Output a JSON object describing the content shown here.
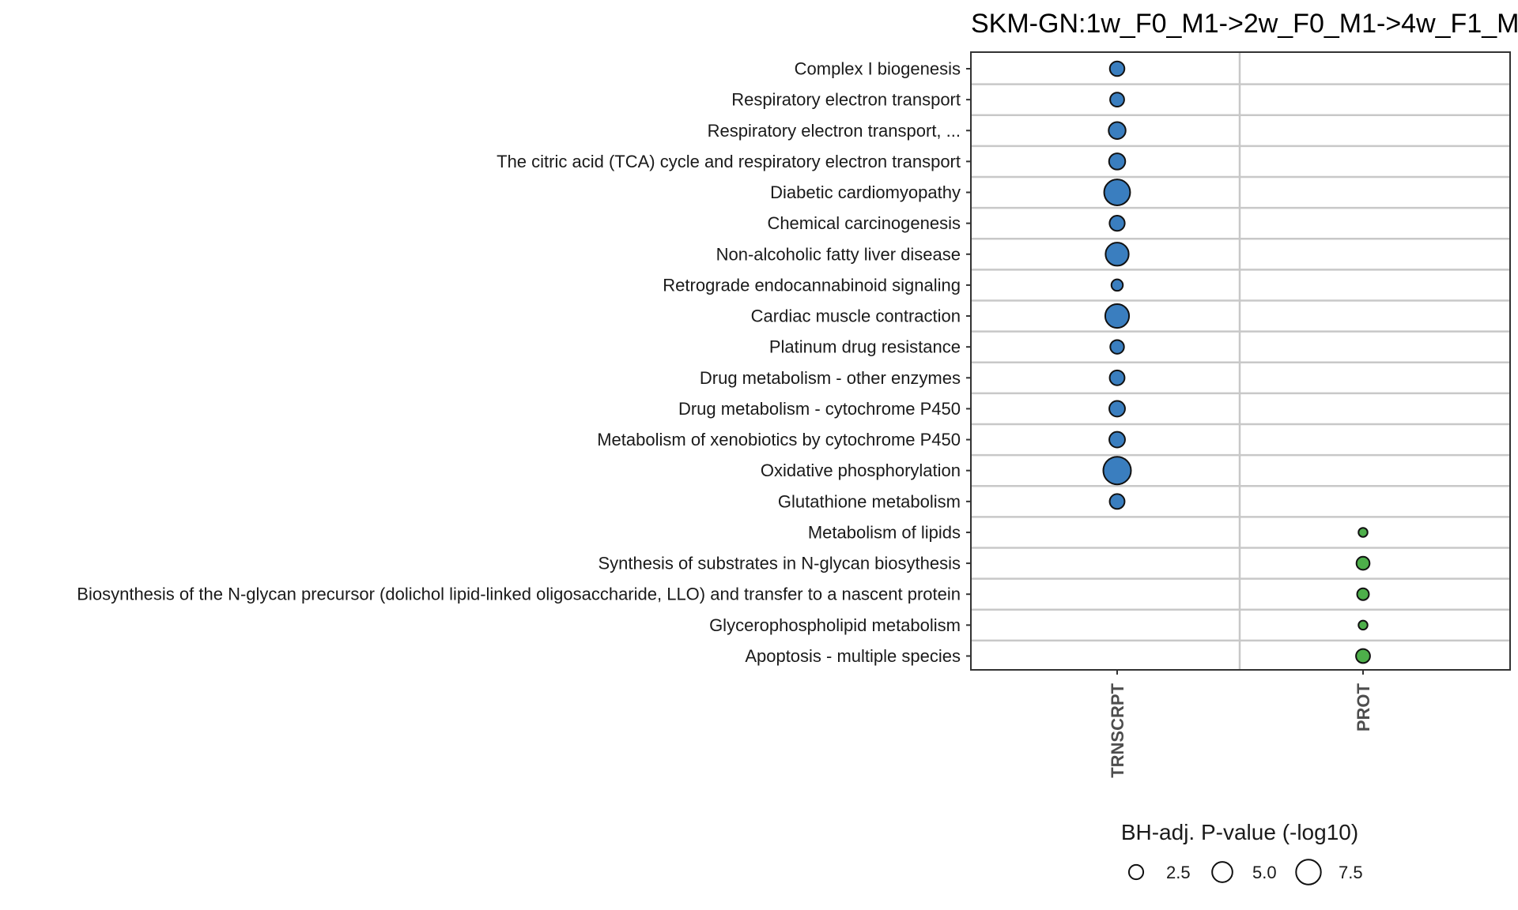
{
  "chart_data": {
    "type": "scatter",
    "title": "SKM-GN:1w_F0_M1->2w_F0_M1->4w_F1_M",
    "columns": [
      "TRNSCRPT",
      "PROT"
    ],
    "rows": [
      "Complex I biogenesis",
      "Respiratory electron transport",
      "Respiratory electron transport, ...",
      "The citric acid (TCA) cycle and respiratory electron transport",
      "Diabetic cardiomyopathy",
      "Chemical carcinogenesis",
      "Non-alcoholic fatty liver disease",
      "Retrograde endocannabinoid signaling",
      "Cardiac muscle contraction",
      "Platinum drug resistance",
      "Drug metabolism - other enzymes",
      "Drug metabolism - cytochrome P450",
      "Metabolism of xenobiotics by cytochrome P450",
      "Oxidative phosphorylation",
      "Glutathione metabolism",
      "Metabolism of lipids",
      "Synthesis of substrates in N-glycan biosythesis",
      "Biosynthesis of the N-glycan precursor (dolichol lipid-linked oligosaccharide, LLO) and transfer to a nascent protein",
      "Glycerophospholipid metabolism",
      "Apoptosis - multiple species"
    ],
    "points": [
      {
        "row": 0,
        "col": 0,
        "value": 2.6,
        "color": "#3a7ebf"
      },
      {
        "row": 1,
        "col": 0,
        "value": 2.4,
        "color": "#3a7ebf"
      },
      {
        "row": 2,
        "col": 0,
        "value": 3.5,
        "color": "#3a7ebf"
      },
      {
        "row": 3,
        "col": 0,
        "value": 3.2,
        "color": "#3a7ebf"
      },
      {
        "row": 4,
        "col": 0,
        "value": 8.2,
        "color": "#3a7ebf"
      },
      {
        "row": 5,
        "col": 0,
        "value": 2.8,
        "color": "#3a7ebf"
      },
      {
        "row": 6,
        "col": 0,
        "value": 6.5,
        "color": "#3a7ebf"
      },
      {
        "row": 7,
        "col": 0,
        "value": 1.6,
        "color": "#3a7ebf"
      },
      {
        "row": 8,
        "col": 0,
        "value": 6.9,
        "color": "#3a7ebf"
      },
      {
        "row": 9,
        "col": 0,
        "value": 2.3,
        "color": "#3a7ebf"
      },
      {
        "row": 10,
        "col": 0,
        "value": 2.7,
        "color": "#3a7ebf"
      },
      {
        "row": 11,
        "col": 0,
        "value": 3.0,
        "color": "#3a7ebf"
      },
      {
        "row": 12,
        "col": 0,
        "value": 3.0,
        "color": "#3a7ebf"
      },
      {
        "row": 13,
        "col": 0,
        "value": 9.3,
        "color": "#3a7ebf"
      },
      {
        "row": 14,
        "col": 0,
        "value": 2.7,
        "color": "#3a7ebf"
      },
      {
        "row": 15,
        "col": 1,
        "value": 1.0,
        "color": "#4daf4a"
      },
      {
        "row": 16,
        "col": 1,
        "value": 2.1,
        "color": "#4daf4a"
      },
      {
        "row": 17,
        "col": 1,
        "value": 1.7,
        "color": "#4daf4a"
      },
      {
        "row": 18,
        "col": 1,
        "value": 1.0,
        "color": "#4daf4a"
      },
      {
        "row": 19,
        "col": 1,
        "value": 2.4,
        "color": "#4daf4a"
      }
    ],
    "legend": {
      "title": "BH-adj. P-value (-log10)",
      "placement": "bottom",
      "breaks": [
        2.5,
        5.0,
        7.5
      ],
      "labels": [
        "2.5",
        "5.0",
        "7.5"
      ]
    },
    "grid": true
  }
}
